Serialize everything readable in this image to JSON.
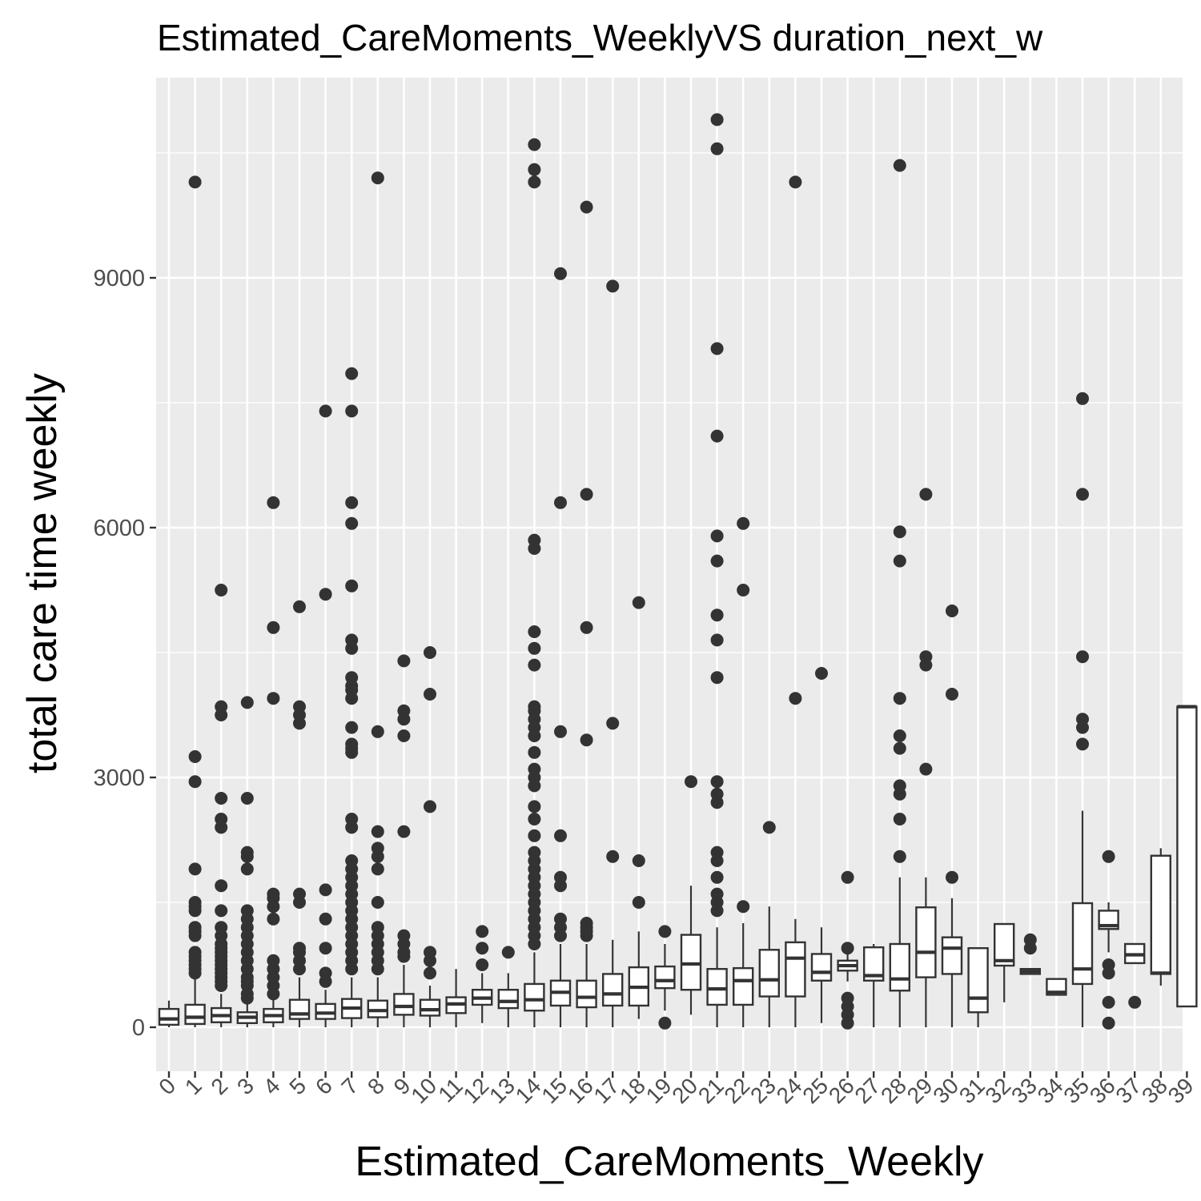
{
  "chart_data": {
    "type": "boxplot",
    "title": "Estimated_CareMoments_WeeklyVS duration_next_w",
    "xlabel": "Estimated_CareMoments_Weekly",
    "ylabel": "total care time weekly",
    "y_ticks": [
      0,
      3000,
      6000,
      9000
    ],
    "ylim": [
      -500,
      11500
    ],
    "grid": true,
    "colors": {
      "panel": "#ebebeb",
      "grid": "#ffffff",
      "box_line": "#333333",
      "box_fill": "#ffffff",
      "outlier": "#333333"
    },
    "categories": [
      "0",
      "1",
      "2",
      "3",
      "4",
      "5",
      "6",
      "7",
      "8",
      "9",
      "10",
      "11",
      "12",
      "13",
      "14",
      "15",
      "16",
      "17",
      "18",
      "19",
      "20",
      "21",
      "22",
      "23",
      "24",
      "25",
      "26",
      "27",
      "28",
      "29",
      "30",
      "31",
      "32",
      "33",
      "34",
      "35",
      "36",
      "37",
      "38",
      "39"
    ],
    "boxes": [
      {
        "category": "0",
        "q1": 30,
        "median": 100,
        "q3": 220,
        "whisker_low": 0,
        "whisker_high": 320,
        "outliers": []
      },
      {
        "category": "1",
        "q1": 40,
        "median": 120,
        "q3": 270,
        "whisker_low": 0,
        "whisker_high": 580,
        "outliers": [
          650,
          700,
          750,
          800,
          850,
          900,
          1100,
          1150,
          1200,
          1400,
          1450,
          1500,
          1900,
          2950,
          3250,
          10150
        ]
      },
      {
        "category": "2",
        "q1": 60,
        "median": 140,
        "q3": 230,
        "whisker_low": 0,
        "whisker_high": 400,
        "outliers": [
          500,
          550,
          600,
          650,
          700,
          750,
          800,
          850,
          900,
          950,
          1000,
          1100,
          1200,
          1400,
          1700,
          2400,
          2500,
          2750,
          3750,
          3850,
          5250
        ]
      },
      {
        "category": "3",
        "q1": 50,
        "median": 120,
        "q3": 180,
        "whisker_low": 0,
        "whisker_high": 300,
        "outliers": [
          350,
          400,
          500,
          550,
          600,
          700,
          800,
          900,
          1000,
          1100,
          1200,
          1300,
          1400,
          1900,
          2050,
          2100,
          2750,
          3900
        ]
      },
      {
        "category": "4",
        "q1": 60,
        "median": 140,
        "q3": 220,
        "whisker_low": 0,
        "whisker_high": 330,
        "outliers": [
          400,
          500,
          600,
          700,
          800,
          1300,
          1450,
          1550,
          1600,
          3950,
          4800,
          6300
        ]
      },
      {
        "category": "5",
        "q1": 100,
        "median": 160,
        "q3": 330,
        "whisker_low": 0,
        "whisker_high": 600,
        "outliers": [
          700,
          800,
          900,
          950,
          1500,
          1600,
          3650,
          3750,
          3850,
          5050
        ]
      },
      {
        "category": "6",
        "q1": 100,
        "median": 170,
        "q3": 280,
        "whisker_low": 0,
        "whisker_high": 450,
        "outliers": [
          550,
          650,
          950,
          1300,
          1650,
          5200,
          7400
        ]
      },
      {
        "category": "7",
        "q1": 110,
        "median": 230,
        "q3": 340,
        "whisker_low": 0,
        "whisker_high": 600,
        "outliers": [
          700,
          800,
          900,
          1000,
          1100,
          1200,
          1300,
          1400,
          1500,
          1600,
          1700,
          1800,
          1900,
          2000,
          2400,
          2500,
          3300,
          3350,
          3400,
          3600,
          3950,
          4050,
          4100,
          4200,
          4550,
          4650,
          5300,
          6050,
          6300,
          7400,
          7850
        ]
      },
      {
        "category": "8",
        "q1": 120,
        "median": 200,
        "q3": 320,
        "whisker_low": 0,
        "whisker_high": 600,
        "outliers": [
          700,
          800,
          900,
          1000,
          1100,
          1200,
          1500,
          1900,
          2050,
          2150,
          2350,
          3550,
          10200
        ]
      },
      {
        "category": "9",
        "q1": 150,
        "median": 250,
        "q3": 400,
        "whisker_low": 0,
        "whisker_high": 750,
        "outliers": [
          850,
          900,
          1000,
          1100,
          2350,
          3500,
          3700,
          3800,
          4400
        ]
      },
      {
        "category": "10",
        "q1": 140,
        "median": 210,
        "q3": 330,
        "whisker_low": 0,
        "whisker_high": 500,
        "outliers": [
          650,
          800,
          900,
          2650,
          4000,
          4500
        ]
      },
      {
        "category": "11",
        "q1": 170,
        "median": 280,
        "q3": 360,
        "whisker_low": 0,
        "whisker_high": 700,
        "outliers": []
      },
      {
        "category": "12",
        "q1": 270,
        "median": 350,
        "q3": 450,
        "whisker_low": 50,
        "whisker_high": 650,
        "outliers": [
          750,
          950,
          1150
        ]
      },
      {
        "category": "13",
        "q1": 230,
        "median": 310,
        "q3": 450,
        "whisker_low": 0,
        "whisker_high": 650,
        "outliers": [
          900
        ]
      },
      {
        "category": "14",
        "q1": 200,
        "median": 330,
        "q3": 520,
        "whisker_low": 0,
        "whisker_high": 900,
        "outliers": [
          1000,
          1100,
          1200,
          1300,
          1400,
          1500,
          1600,
          1700,
          1800,
          1900,
          2000,
          2100,
          2300,
          2500,
          2650,
          2900,
          3000,
          3100,
          3300,
          3500,
          3600,
          3700,
          3800,
          3850,
          4350,
          4550,
          4750,
          5750,
          5850,
          10150,
          10300,
          10600
        ]
      },
      {
        "category": "15",
        "q1": 260,
        "median": 420,
        "q3": 560,
        "whisker_low": 0,
        "whisker_high": 1000,
        "outliers": [
          1100,
          1200,
          1300,
          1700,
          1800,
          2300,
          3550,
          6300,
          9050
        ]
      },
      {
        "category": "16",
        "q1": 240,
        "median": 360,
        "q3": 560,
        "whisker_low": 0,
        "whisker_high": 1000,
        "outliers": [
          1100,
          1150,
          1200,
          1250,
          3450,
          4800,
          6400,
          9850
        ]
      },
      {
        "category": "17",
        "q1": 260,
        "median": 400,
        "q3": 640,
        "whisker_low": 0,
        "whisker_high": 1050,
        "outliers": [
          2050,
          3650,
          8900
        ]
      },
      {
        "category": "18",
        "q1": 260,
        "median": 480,
        "q3": 720,
        "whisker_low": 100,
        "whisker_high": 1150,
        "outliers": [
          1500,
          2000,
          5100
        ]
      },
      {
        "category": "19",
        "q1": 470,
        "median": 560,
        "q3": 730,
        "whisker_low": 200,
        "whisker_high": 1000,
        "outliers": [
          50,
          1150
        ]
      },
      {
        "category": "20",
        "q1": 450,
        "median": 760,
        "q3": 1110,
        "whisker_low": 150,
        "whisker_high": 1700,
        "outliers": [
          2950
        ]
      },
      {
        "category": "21",
        "q1": 270,
        "median": 460,
        "q3": 700,
        "whisker_low": 0,
        "whisker_high": 1200,
        "outliers": [
          1400,
          1500,
          1600,
          1800,
          2000,
          2100,
          2700,
          2800,
          2950,
          4200,
          4650,
          4950,
          5600,
          5900,
          7100,
          8150,
          10550,
          10900
        ]
      },
      {
        "category": "22",
        "q1": 270,
        "median": 560,
        "q3": 710,
        "whisker_low": 0,
        "whisker_high": 1250,
        "outliers": [
          1450,
          5250,
          6050
        ]
      },
      {
        "category": "23",
        "q1": 370,
        "median": 570,
        "q3": 930,
        "whisker_low": 0,
        "whisker_high": 1450,
        "outliers": [
          2400
        ]
      },
      {
        "category": "24",
        "q1": 370,
        "median": 830,
        "q3": 1020,
        "whisker_low": 0,
        "whisker_high": 1300,
        "outliers": [
          3950,
          10150
        ]
      },
      {
        "category": "25",
        "q1": 560,
        "median": 660,
        "q3": 880,
        "whisker_low": 50,
        "whisker_high": 1200,
        "outliers": [
          4250
        ]
      },
      {
        "category": "26",
        "q1": 680,
        "median": 740,
        "q3": 800,
        "whisker_low": 550,
        "whisker_high": 900,
        "outliers": [
          50,
          150,
          250,
          350,
          950,
          1800
        ]
      },
      {
        "category": "27",
        "q1": 560,
        "median": 620,
        "q3": 960,
        "whisker_low": 0,
        "whisker_high": 1000,
        "outliers": []
      },
      {
        "category": "28",
        "q1": 440,
        "median": 580,
        "q3": 1000,
        "whisker_low": 0,
        "whisker_high": 1800,
        "outliers": [
          2050,
          2500,
          2800,
          2900,
          3350,
          3500,
          3950,
          5600,
          5950,
          10350
        ]
      },
      {
        "category": "29",
        "q1": 600,
        "median": 900,
        "q3": 1440,
        "whisker_low": 0,
        "whisker_high": 1800,
        "outliers": [
          3100,
          4350,
          4450,
          6400
        ]
      },
      {
        "category": "30",
        "q1": 640,
        "median": 950,
        "q3": 1080,
        "whisker_low": 0,
        "whisker_high": 1550,
        "outliers": [
          1800,
          4000,
          5000
        ]
      },
      {
        "category": "31",
        "q1": 180,
        "median": 350,
        "q3": 950,
        "whisker_low": 0,
        "whisker_high": 950,
        "outliers": []
      },
      {
        "category": "32",
        "q1": 740,
        "median": 800,
        "q3": 1240,
        "whisker_low": 300,
        "whisker_high": 1240,
        "outliers": []
      },
      {
        "category": "33",
        "q1": 640,
        "median": 670,
        "q3": 700,
        "whisker_low": 640,
        "whisker_high": 700,
        "outliers": [
          950,
          1050
        ]
      },
      {
        "category": "34",
        "q1": 390,
        "median": 420,
        "q3": 580,
        "whisker_low": 390,
        "whisker_high": 580,
        "outliers": []
      },
      {
        "category": "35",
        "q1": 520,
        "median": 700,
        "q3": 1490,
        "whisker_low": 0,
        "whisker_high": 2600,
        "outliers": [
          3400,
          3600,
          3700,
          4450,
          6400,
          7550
        ]
      },
      {
        "category": "36",
        "q1": 1180,
        "median": 1220,
        "q3": 1400,
        "whisker_low": 900,
        "whisker_high": 1500,
        "outliers": [
          50,
          300,
          650,
          750,
          2050
        ]
      },
      {
        "category": "37",
        "q1": 770,
        "median": 870,
        "q3": 1000,
        "whisker_low": 770,
        "whisker_high": 1000,
        "outliers": [
          300
        ]
      },
      {
        "category": "38",
        "q1": 640,
        "median": 650,
        "q3": 2060,
        "whisker_low": 500,
        "whisker_high": 2150,
        "outliers": []
      },
      {
        "category": "39",
        "q1": 250,
        "median": 3850,
        "q3": 3850,
        "whisker_low": 250,
        "whisker_high": 3850,
        "outliers": []
      }
    ]
  }
}
